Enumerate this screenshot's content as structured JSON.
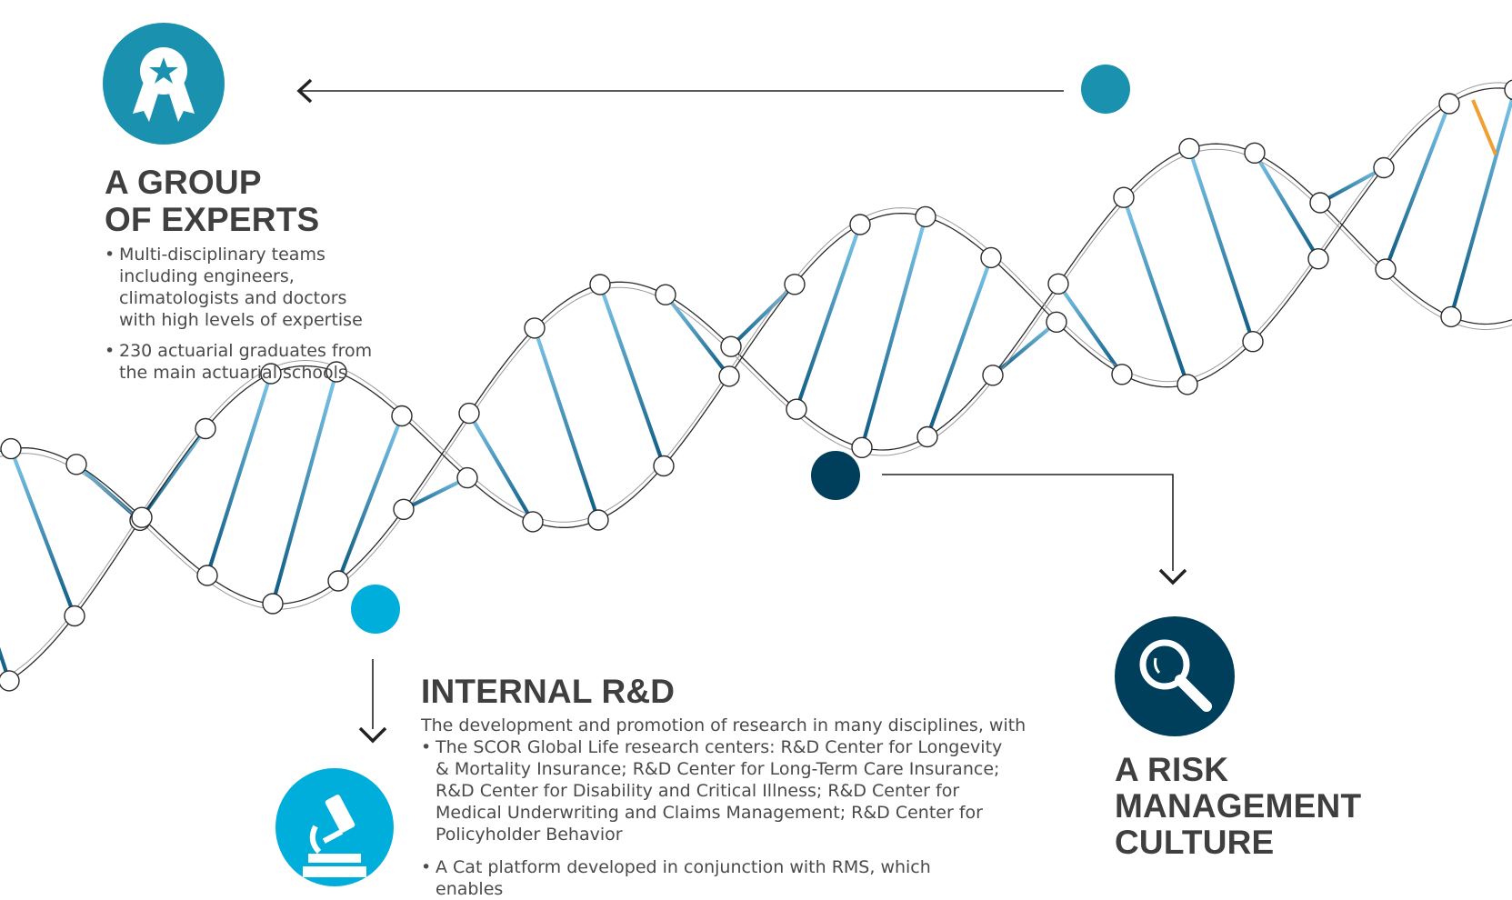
{
  "experts": {
    "title_line1": "A GROUP",
    "title_line2": "OF EXPERTS",
    "bullets": [
      "Multi-disciplinary teams including engineers, climatologists and doctors with high levels of expertise",
      "230 actuarial graduates from the main actuarial schools"
    ],
    "icon": "award-ribbon-icon",
    "color": "#1b91b0"
  },
  "rnd": {
    "title": "INTERNAL R&D",
    "intro": "The development and promotion of research in many disciplines, with",
    "bullets": [
      "The SCOR Global Life research centers: R&D Center for Longevity & Mortality Insurance; R&D Center for Long-Term Care Insurance; R&D Center for Disability and Critical Illness; R&D Center for Medical Underwriting and Claims Management; R&D Center for Policyholder Behavior",
      "A Cat platform developed in conjunction with RMS, which enables"
    ],
    "icon": "microscope-icon",
    "color": "#00aedb"
  },
  "risk": {
    "title_line1": "A RISK",
    "title_line2": "MANAGEMENT",
    "title_line3": "CULTURE",
    "icon": "magnifying-glass-icon",
    "color": "#003f5c"
  },
  "helix": {
    "rung_light": "#6fbde3",
    "rung_dark": "#0f5c84",
    "accent": "#f0a030"
  }
}
